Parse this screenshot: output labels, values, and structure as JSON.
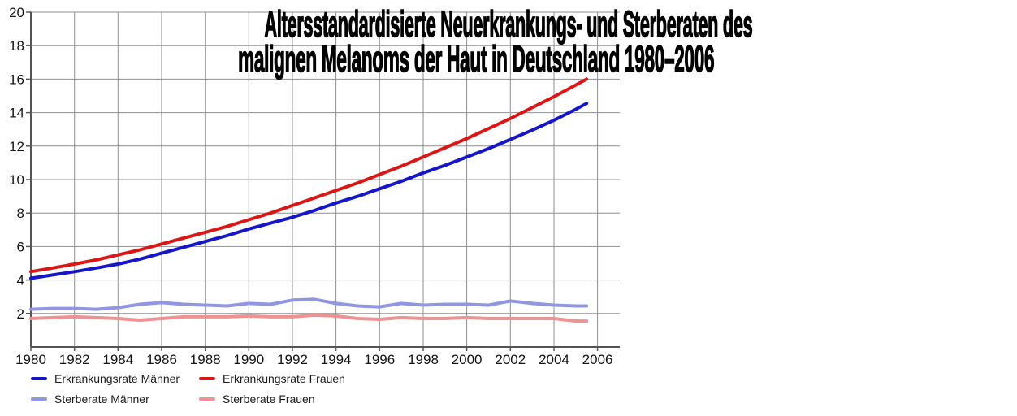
{
  "title": {
    "line1": "Altersstandardisierte Neuerkrankungs- und Sterberaten des",
    "line2": "malignen Melanoms der Haut in Deutschland 1980–2006"
  },
  "chart_data": {
    "type": "line",
    "title": "Altersstandardisierte Neuerkrankungs- und Sterberaten des malignen Melanoms der Haut in Deutschland 1980–2006",
    "xlabel": "",
    "ylabel": "",
    "xlim": [
      1980,
      2007.02
    ],
    "ylim": [
      0,
      20
    ],
    "grid": true,
    "legend_position": "bottom-left",
    "line_width": 4,
    "grid_color": "#8f8f8f",
    "axis_color": "#555555",
    "tick_label_color": "#141414",
    "xticks": [
      1980,
      1982,
      1984,
      1986,
      1988,
      1990,
      1992,
      1994,
      1996,
      1998,
      2000,
      2002,
      2004,
      2006
    ],
    "x_tick_labels": [
      "1980",
      "1982",
      "1984",
      "1986",
      "1988",
      "1990",
      "1992",
      "1994",
      "1996",
      "1998",
      "2000",
      "2002",
      "2004",
      "2006"
    ],
    "yticks": [
      2,
      4,
      6,
      8,
      10,
      12,
      14,
      16,
      18,
      20
    ],
    "y_tick_labels": [
      "2",
      "4",
      "6",
      "8",
      "10",
      "12",
      "14",
      "16",
      "18",
      "20"
    ],
    "x": [
      1980,
      1981,
      1982,
      1983,
      1984,
      1985,
      1986,
      1987,
      1988,
      1989,
      1990,
      1991,
      1992,
      1993,
      1994,
      1995,
      1996,
      1997,
      1998,
      1999,
      2000,
      2001,
      2002,
      2003,
      2004,
      2005,
      2005.5
    ],
    "series": [
      {
        "name": "Erkrankungsrate Männer",
        "color": "#1616c9",
        "values": [
          4.1,
          4.3,
          4.5,
          4.72,
          4.95,
          5.25,
          5.6,
          5.95,
          6.3,
          6.65,
          7.05,
          7.4,
          7.75,
          8.15,
          8.6,
          9.0,
          9.45,
          9.9,
          10.4,
          10.85,
          11.35,
          11.85,
          12.4,
          12.95,
          13.55,
          14.2,
          14.55
        ]
      },
      {
        "name": "Erkrankungsrate Frauen",
        "color": "#da1717",
        "values": [
          4.5,
          4.72,
          4.95,
          5.2,
          5.5,
          5.8,
          6.15,
          6.5,
          6.85,
          7.2,
          7.6,
          8.0,
          8.45,
          8.9,
          9.35,
          9.8,
          10.3,
          10.8,
          11.35,
          11.9,
          12.45,
          13.05,
          13.65,
          14.3,
          14.95,
          15.65,
          16.0
        ]
      },
      {
        "name": "Sterberate Männer",
        "color": "#9196e2",
        "values": [
          2.25,
          2.3,
          2.3,
          2.25,
          2.35,
          2.55,
          2.65,
          2.55,
          2.5,
          2.45,
          2.6,
          2.55,
          2.8,
          2.85,
          2.6,
          2.45,
          2.4,
          2.6,
          2.5,
          2.55,
          2.55,
          2.5,
          2.75,
          2.6,
          2.5,
          2.45,
          2.45
        ]
      },
      {
        "name": "Sterberate Frauen",
        "color": "#ee9295",
        "values": [
          1.7,
          1.75,
          1.8,
          1.75,
          1.7,
          1.6,
          1.7,
          1.8,
          1.8,
          1.8,
          1.85,
          1.8,
          1.8,
          1.9,
          1.85,
          1.7,
          1.65,
          1.75,
          1.7,
          1.7,
          1.75,
          1.7,
          1.7,
          1.7,
          1.7,
          1.55,
          1.55
        ]
      }
    ]
  },
  "legend": {
    "items": [
      {
        "label": "Erkrankungsrate Männer"
      },
      {
        "label": "Erkrankungsrate Frauen"
      },
      {
        "label": "Sterberate Männer"
      },
      {
        "label": "Sterberate Frauen"
      }
    ]
  }
}
